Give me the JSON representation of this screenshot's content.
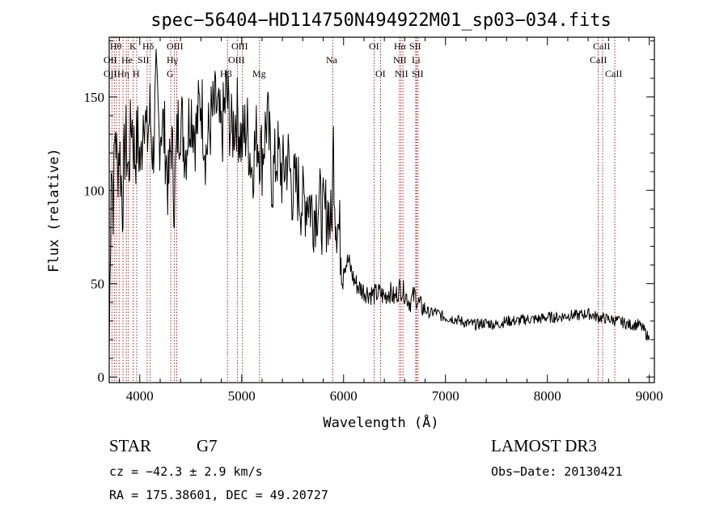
{
  "chart_data": {
    "type": "line",
    "title": "spec−56404−HD114750N494922M01_sp03−034.fits",
    "xlabel": "Wavelength (Å)",
    "ylabel": "Flux (relative)",
    "xlim": [
      3700,
      9050
    ],
    "ylim": [
      -3,
      182
    ],
    "xticks": [
      4000,
      5000,
      6000,
      7000,
      8000,
      9000
    ],
    "xtick_labels": [
      "4000",
      "5000",
      "6000",
      "7000",
      "8000",
      "9000"
    ],
    "yticks": [
      0,
      50,
      100,
      150
    ],
    "ytick_labels": [
      "0",
      "50",
      "100",
      "150"
    ],
    "series": [
      {
        "name": "spectrum",
        "x": [
          3700,
          3720,
          3740,
          3760,
          3780,
          3800,
          3830,
          3860,
          3890,
          3920,
          3950,
          3980,
          4010,
          4040,
          4070,
          4100,
          4130,
          4160,
          4190,
          4220,
          4250,
          4280,
          4310,
          4340,
          4370,
          4400,
          4450,
          4500,
          4550,
          4600,
          4650,
          4700,
          4750,
          4800,
          4850,
          4900,
          4950,
          5000,
          5050,
          5100,
          5150,
          5200,
          5250,
          5300,
          5350,
          5400,
          5450,
          5500,
          5550,
          5600,
          5650,
          5700,
          5750,
          5800,
          5850,
          5880,
          5900,
          5920,
          5950,
          5980,
          6000,
          6050,
          6100,
          6150,
          6200,
          6250,
          6300,
          6350,
          6400,
          6450,
          6500,
          6550,
          6600,
          6650,
          6700,
          6750,
          6800,
          6850,
          6900,
          6950,
          7000,
          7100,
          7200,
          7300,
          7400,
          7500,
          7600,
          7700,
          7800,
          7900,
          8000,
          8100,
          8200,
          8300,
          8400,
          8500,
          8600,
          8700,
          8800,
          8900,
          8950,
          8980,
          9000
        ],
        "values": [
          10,
          120,
          95,
          135,
          110,
          125,
          92,
          130,
          108,
          140,
          118,
          128,
          112,
          150,
          125,
          142,
          118,
          155,
          130,
          138,
          125,
          100,
          128,
          95,
          132,
          140,
          122,
          145,
          130,
          150,
          120,
          138,
          145,
          128,
          152,
          130,
          142,
          125,
          135,
          112,
          130,
          118,
          140,
          105,
          120,
          108,
          118,
          100,
          102,
          92,
          98,
          88,
          95,
          85,
          90,
          78,
          125,
          90,
          80,
          68,
          60,
          62,
          52,
          48,
          46,
          45,
          44,
          45,
          43,
          46,
          42,
          48,
          45,
          40,
          44,
          38,
          36,
          34,
          35,
          33,
          32,
          31,
          29,
          28,
          29,
          28,
          30,
          30,
          31,
          31,
          32,
          32,
          33,
          33,
          34,
          32,
          31,
          30,
          28,
          28,
          25,
          22,
          20
        ]
      }
    ],
    "line_markers": [
      {
        "x": 3727,
        "labels": [
          "OII",
          "OII"
        ]
      },
      {
        "x": 3750,
        "labels": [
          "Hθ"
        ]
      },
      {
        "x": 3770,
        "labels": [
          "Hη"
        ]
      },
      {
        "x": 3798,
        "labels": [
          "Hη"
        ]
      },
      {
        "x": 3835,
        "labels": [
          "Hη"
        ]
      },
      {
        "x": 3869,
        "labels": [
          "NeIII"
        ]
      },
      {
        "x": 3889,
        "labels": [
          "HeI"
        ]
      },
      {
        "x": 3934,
        "labels": [
          "K"
        ]
      },
      {
        "x": 3969,
        "labels": [
          "H",
          "SII"
        ]
      },
      {
        "x": 4072,
        "labels": [
          "SII"
        ]
      },
      {
        "x": 4102,
        "labels": [
          "Hδ"
        ]
      },
      {
        "x": 4304,
        "labels": [
          "G"
        ]
      },
      {
        "x": 4340,
        "labels": [
          "Hγ",
          "OIII"
        ]
      },
      {
        "x": 4363,
        "labels": [
          "OIII"
        ]
      },
      {
        "x": 4861,
        "labels": [
          "Hβ"
        ]
      },
      {
        "x": 4959,
        "labels": [
          "OIII"
        ]
      },
      {
        "x": 5007,
        "labels": [
          "OIII"
        ]
      },
      {
        "x": 5175,
        "labels": [
          "Mg"
        ]
      },
      {
        "x": 5894,
        "labels": [
          "Na"
        ]
      },
      {
        "x": 6300,
        "labels": [
          "OI"
        ]
      },
      {
        "x": 6363,
        "labels": [
          "OI"
        ]
      },
      {
        "x": 6548,
        "labels": [
          "NII"
        ]
      },
      {
        "x": 6563,
        "labels": [
          "Hα"
        ]
      },
      {
        "x": 6583,
        "labels": [
          "NII"
        ]
      },
      {
        "x": 6708,
        "labels": [
          "Li"
        ]
      },
      {
        "x": 6716,
        "labels": [
          "SII"
        ]
      },
      {
        "x": 6731,
        "labels": [
          "SII"
        ]
      },
      {
        "x": 8498,
        "labels": [
          "CaII"
        ]
      },
      {
        "x": 8542,
        "labels": [
          "CaII"
        ]
      },
      {
        "x": 8662,
        "labels": [
          "CaII"
        ]
      }
    ],
    "marker_color": "#b22222",
    "grid": false
  },
  "text_labels": {
    "line_labels": {
      "l0": "Hθ",
      "l1": "K",
      "l2": "Hδ",
      "l3": "OIII",
      "l4": "OIII",
      "l5": "OI",
      "l6": "Hα",
      "l7": "SII",
      "l8": "CaII",
      "l9": "OII",
      "l10": "He",
      "l11": "SII",
      "l12": "Hγ",
      "l13": "OIII",
      "l14": "Na",
      "l15": "NII",
      "l16": "Li",
      "l17": "CaII",
      "l18": "OII",
      "l19": "Hη",
      "l20": "H",
      "l21": "G",
      "l22": "Hβ",
      "l23": "Mg",
      "l24": "OI",
      "l25": "NII",
      "l26": "SII",
      "l27": "CaII"
    }
  },
  "info": {
    "object_class": "STAR",
    "subclass": "G7",
    "survey": "LAMOST DR3",
    "redshift": "cz = −42.3 ± 2.9 km/s",
    "obs_date": "Obs−Date: 20130421",
    "coords": "RA = 175.38601, DEC =  49.20727"
  }
}
